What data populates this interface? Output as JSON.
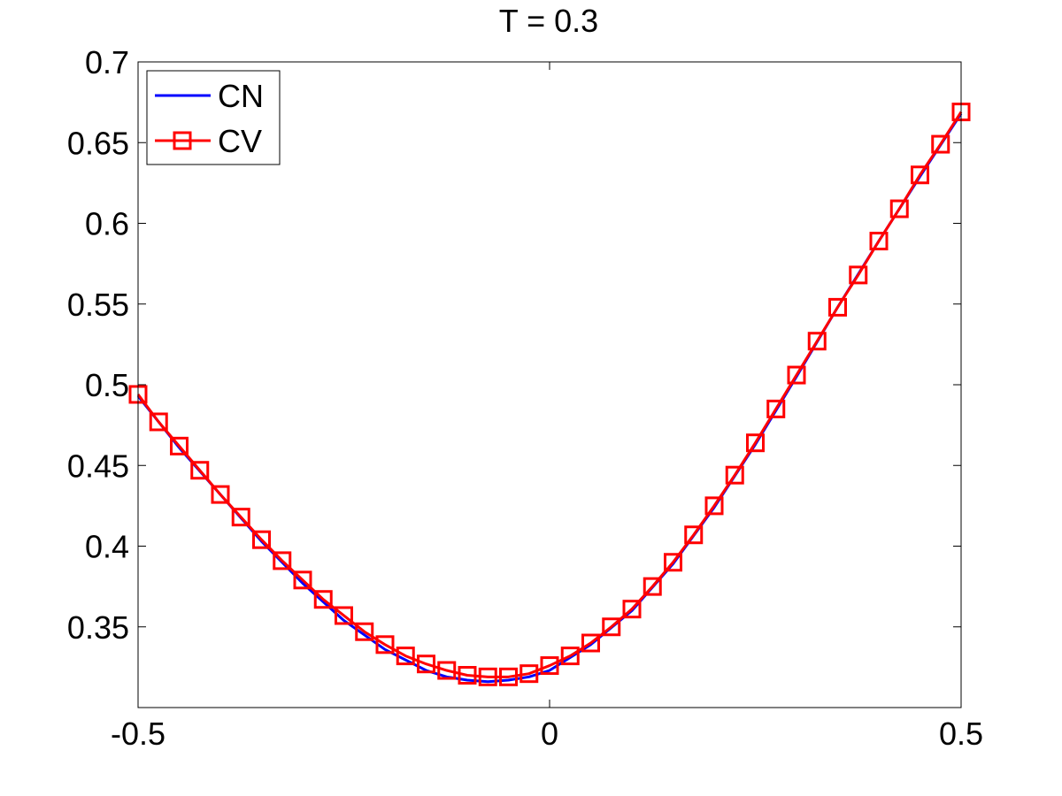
{
  "chart_data": {
    "type": "line",
    "title": "T = 0.3",
    "xlabel": "",
    "ylabel": "",
    "xlim": [
      -0.5,
      0.5
    ],
    "ylim": [
      0.3,
      0.7
    ],
    "x_ticks": [
      -0.5,
      0,
      0.5
    ],
    "x_tick_labels": [
      "-0.5",
      "0",
      "0.5"
    ],
    "y_ticks": [
      0.35,
      0.4,
      0.45,
      0.5,
      0.55,
      0.6,
      0.65,
      0.7
    ],
    "y_tick_labels": [
      "0.35",
      "0.4",
      "0.45",
      "0.5",
      "0.55",
      "0.6",
      "0.65",
      "0.7"
    ],
    "grid": false,
    "legend_position": "top-left",
    "series": [
      {
        "name": "CN",
        "color": "#0000ff",
        "marker": "none",
        "x": [
          -0.5,
          -0.45,
          -0.4,
          -0.35,
          -0.3,
          -0.25,
          -0.2,
          -0.15,
          -0.125,
          -0.1,
          -0.075,
          -0.05,
          -0.025,
          0,
          0.05,
          0.1,
          0.15,
          0.2,
          0.25,
          0.3,
          0.35,
          0.4,
          0.45,
          0.5
        ],
        "y": [
          0.493,
          0.461,
          0.432,
          0.403,
          0.377,
          0.354,
          0.336,
          0.323,
          0.319,
          0.317,
          0.316,
          0.317,
          0.319,
          0.323,
          0.339,
          0.36,
          0.389,
          0.424,
          0.463,
          0.505,
          0.548,
          0.589,
          0.629,
          0.668
        ]
      },
      {
        "name": "CV",
        "color": "#ff0000",
        "marker": "square",
        "x": [
          -0.5,
          -0.475,
          -0.45,
          -0.425,
          -0.4,
          -0.375,
          -0.35,
          -0.325,
          -0.3,
          -0.275,
          -0.25,
          -0.225,
          -0.2,
          -0.175,
          -0.15,
          -0.125,
          -0.1,
          -0.075,
          -0.05,
          -0.025,
          0,
          0.025,
          0.05,
          0.075,
          0.1,
          0.125,
          0.15,
          0.175,
          0.2,
          0.225,
          0.25,
          0.275,
          0.3,
          0.325,
          0.35,
          0.375,
          0.4,
          0.425,
          0.45,
          0.475,
          0.5
        ],
        "y": [
          0.494,
          0.477,
          0.462,
          0.447,
          0.432,
          0.418,
          0.404,
          0.391,
          0.379,
          0.367,
          0.357,
          0.347,
          0.339,
          0.332,
          0.327,
          0.323,
          0.32,
          0.319,
          0.319,
          0.321,
          0.326,
          0.332,
          0.34,
          0.35,
          0.361,
          0.375,
          0.39,
          0.407,
          0.425,
          0.444,
          0.464,
          0.485,
          0.506,
          0.527,
          0.548,
          0.568,
          0.589,
          0.609,
          0.63,
          0.649,
          0.669
        ]
      }
    ]
  }
}
